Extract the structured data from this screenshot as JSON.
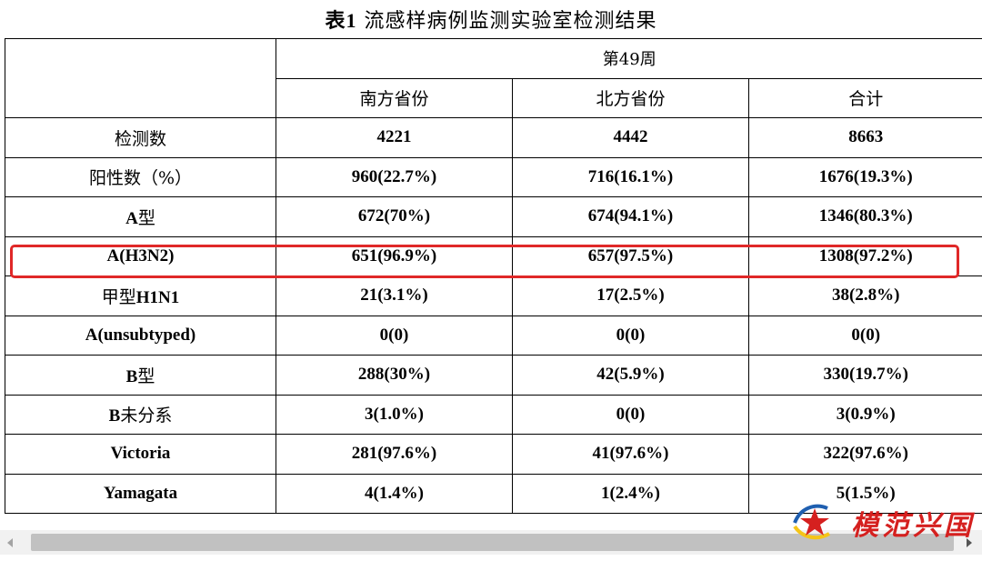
{
  "title": {
    "prefix": "表1",
    "text": "流感样病例监测实验室检测结果"
  },
  "table": {
    "week_label": "第49周",
    "columns": [
      "南方省份",
      "北方省份",
      "合计"
    ],
    "rows": [
      {
        "label": "检测数",
        "values": [
          "4221",
          "4442",
          "8663"
        ]
      },
      {
        "label": "阳性数（%）",
        "values": [
          "960(22.7%)",
          "716(16.1%)",
          "1676(19.3%)"
        ]
      },
      {
        "label_latin": "A",
        "label_cn": "型",
        "values": [
          "672(70%)",
          "674(94.1%)",
          "1346(80.3%)"
        ]
      },
      {
        "label": "A(H3N2)",
        "values": [
          "651(96.9%)",
          "657(97.5%)",
          "1308(97.2%)"
        ],
        "highlighted": true
      },
      {
        "label_cn": "甲型",
        "label_latin": "H1N1",
        "values": [
          "21(3.1%)",
          "17(2.5%)",
          "38(2.8%)"
        ]
      },
      {
        "label": "A(unsubtyped)",
        "values": [
          "0(0)",
          "0(0)",
          "0(0)"
        ]
      },
      {
        "label_latin": "B",
        "label_cn": "型",
        "values": [
          "288(30%)",
          "42(5.9%)",
          "330(19.7%)"
        ]
      },
      {
        "label_latin": "B",
        "label_cn": "未分系",
        "values": [
          "3(1.0%)",
          "0(0)",
          "3(0.9%)"
        ]
      },
      {
        "label": "Victoria",
        "values": [
          "281(97.6%)",
          "41(97.6%)",
          "322(97.6%)"
        ]
      },
      {
        "label": "Yamagata",
        "values": [
          "4(1.4%)",
          "1(2.4%)",
          "5(1.5%)"
        ]
      }
    ]
  },
  "colors": {
    "highlight": "#e02828",
    "watermark_red": "#d5201f",
    "watermark_blue": "#1f5fb0",
    "watermark_yellow": "#f5c518"
  },
  "watermark": {
    "icon": "star-wave-logo-icon",
    "text": "模范兴国"
  }
}
